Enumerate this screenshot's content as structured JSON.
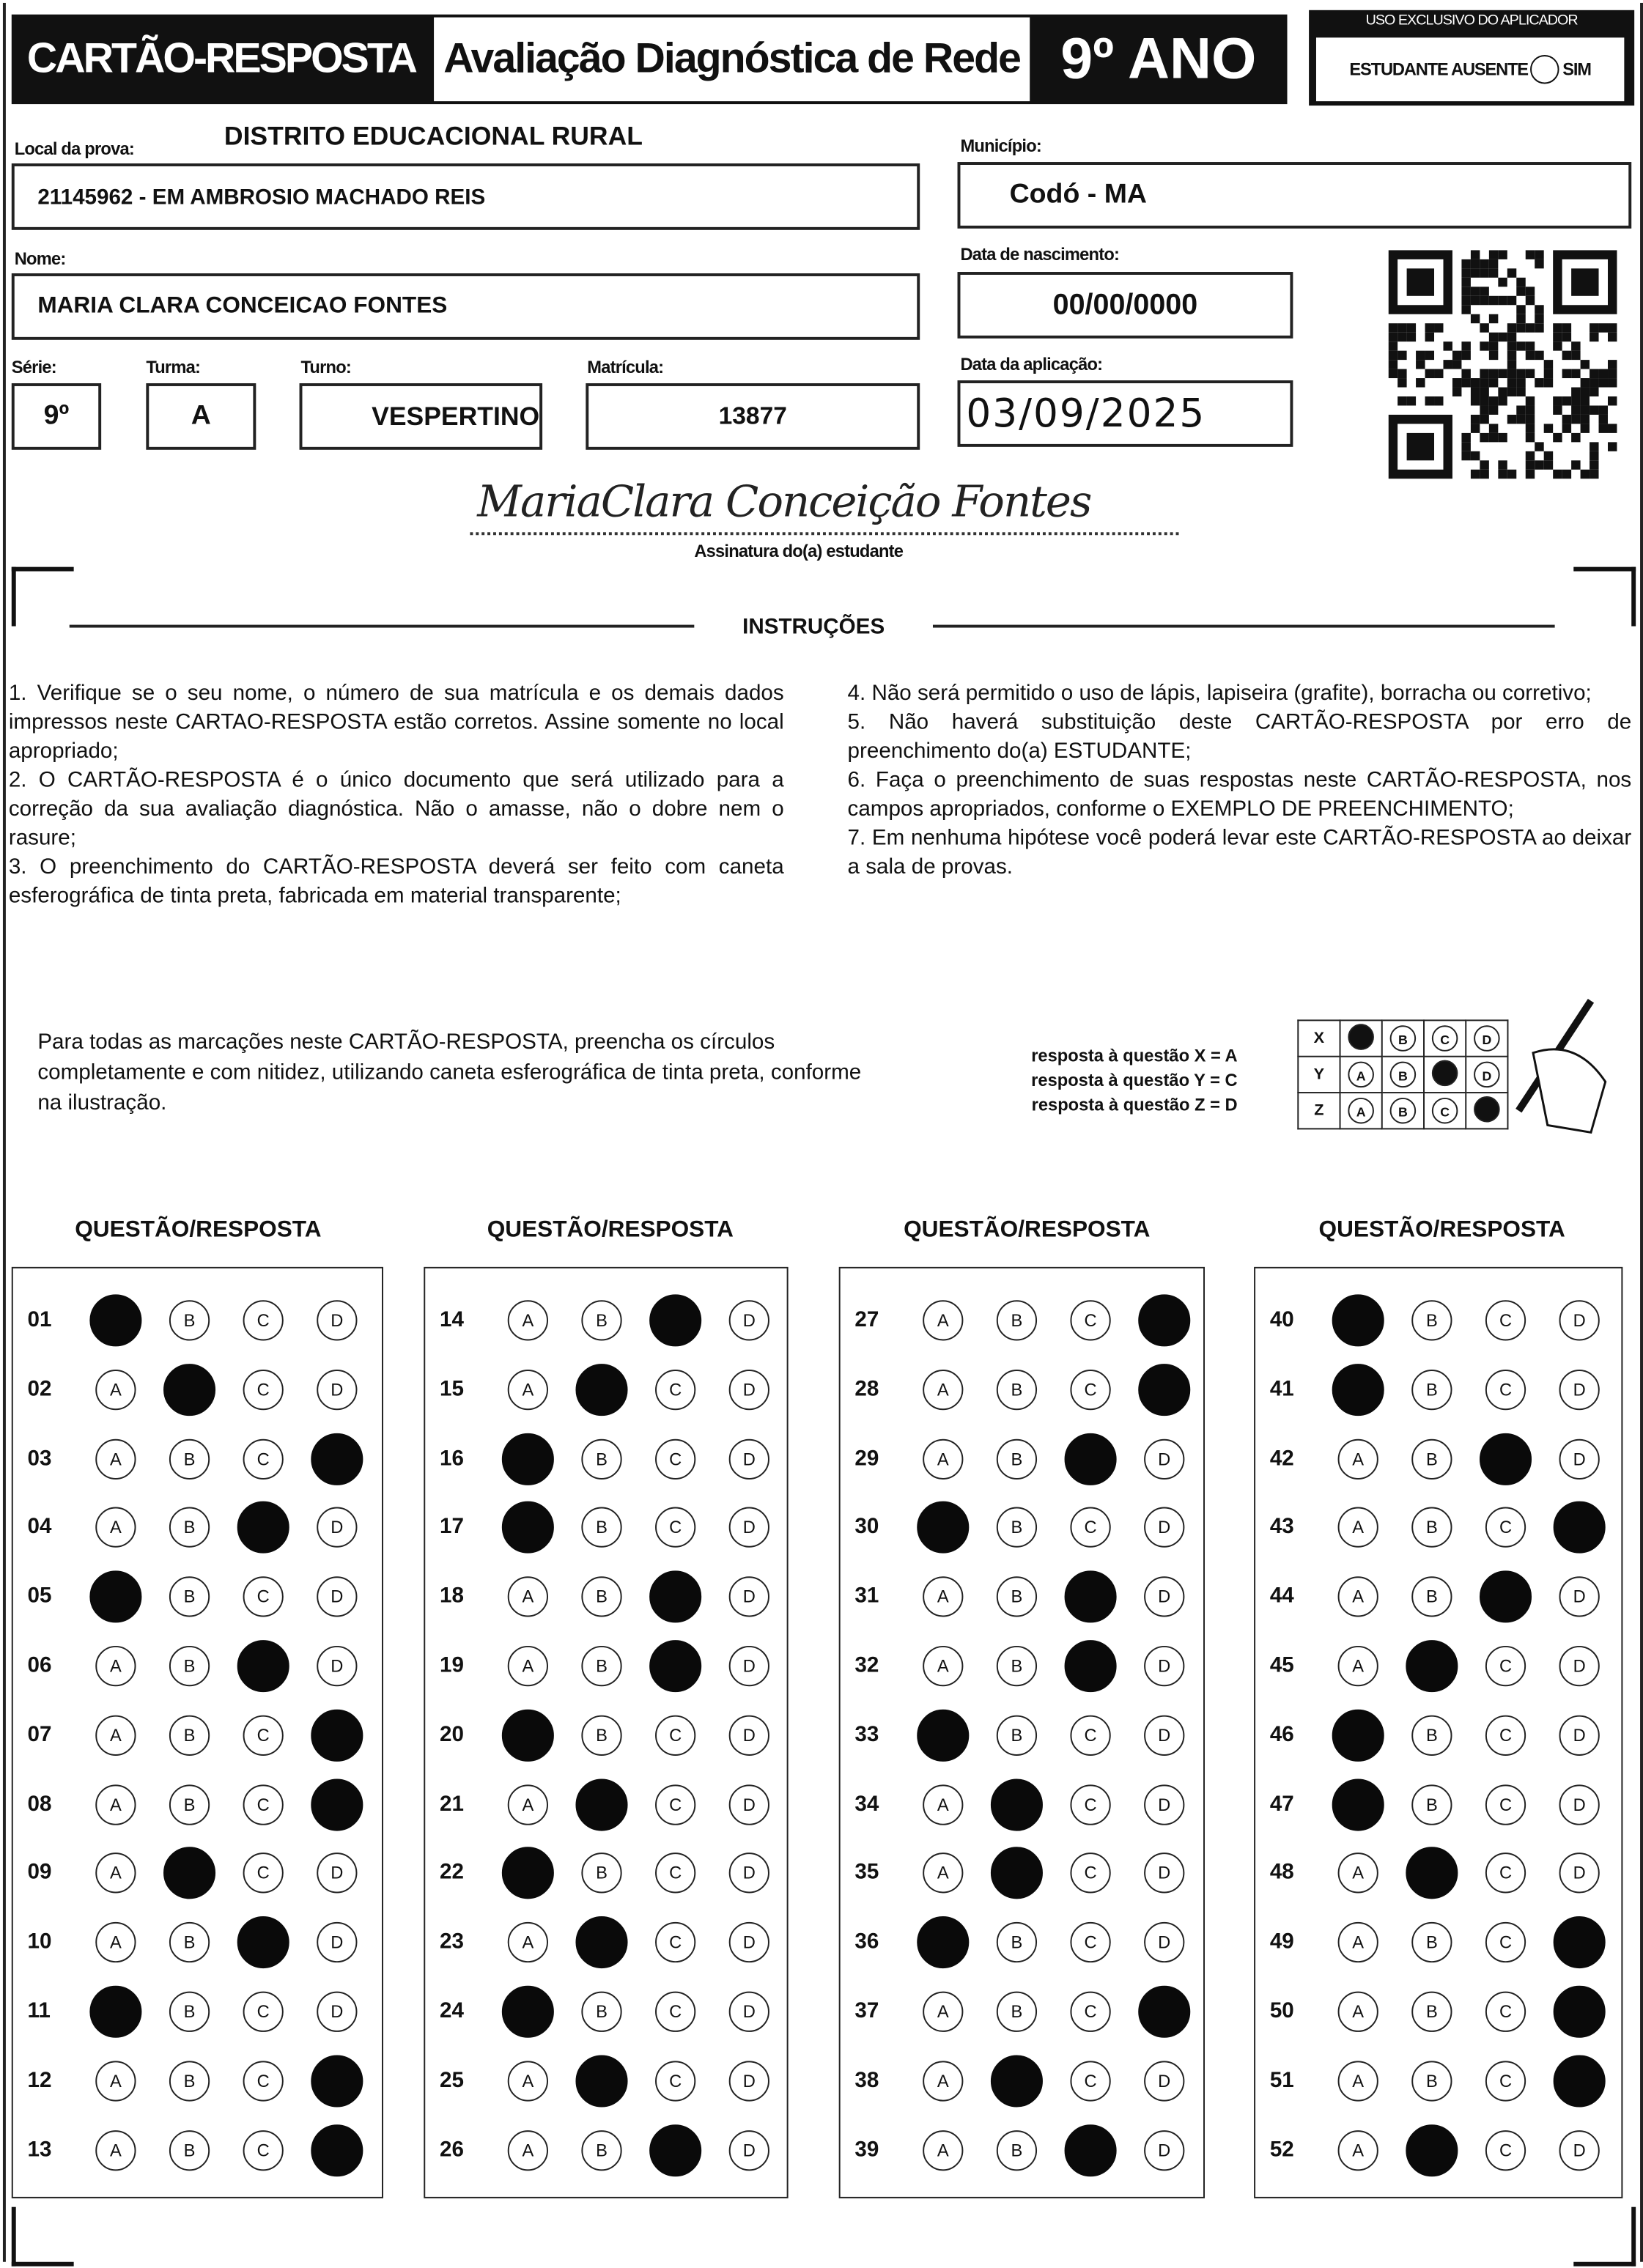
{
  "header": {
    "card_title": "CARTÃO-RESPOSTA",
    "exam_title": "Avaliação Diagnóstica de Rede",
    "grade_title": "9º ANO",
    "applicator_title": "USO EXCLUSIVO DO APLICADOR",
    "absent_label": "ESTUDANTE AUSENTE",
    "absent_option": "SIM"
  },
  "student": {
    "district": "DISTRITO EDUCACIONAL RURAL",
    "local_label": "Local da prova:",
    "local_value": "21145962 - EM AMBROSIO MACHADO REIS",
    "municipio_label": "Município:",
    "municipio_value": "Codó - MA",
    "nome_label": "Nome:",
    "nome_value": "MARIA CLARA CONCEICAO FONTES",
    "nascimento_label": "Data de nascimento:",
    "nascimento_value": "00/00/0000",
    "serie_label": "Série:",
    "serie_value": "9º",
    "turma_label": "Turma:",
    "turma_value": "A",
    "turno_label": "Turno:",
    "turno_value": "VESPERTINO",
    "matricula_label": "Matrícula:",
    "matricula_value": "13877",
    "aplicacao_label": "Data da aplicação:",
    "aplicacao_value": "03/09/2025",
    "signature": "MariaClara Conceição Fontes",
    "signature_label": "Assinatura do(a) estudante"
  },
  "instructions": {
    "title": "INSTRUÇÕES",
    "left": [
      "1. Verifique se o seu nome, o número de sua matrícula e os demais dados impressos neste CARTAO-RESPOSTA estão corretos. Assine somente no local apropriado;",
      "2. O CARTÃO-RESPOSTA é o único documento que será utilizado para a correção da sua avaliação diagnóstica. Não o amasse, não o dobre nem o rasure;",
      "3. O preenchimento do CARTÃO-RESPOSTA deverá ser feito com caneta esferográfica de tinta preta, fabricada em material transparente;"
    ],
    "right": [
      "4. Não será permitido o uso de lápis, lapiseira (grafite), borracha ou corretivo;",
      "5. Não haverá substituição deste CARTÃO-RESPOSTA por erro de preenchimento do(a) ESTUDANTE;",
      "6. Faça o preenchimento de suas respostas neste CARTÃO-RESPOSTA, nos campos apropriados, conforme o EXEMPLO DE PREENCHIMENTO;",
      "7. Em nenhuma hipótese você poderá levar este CARTÃO-RESPOSTA ao deixar a sala de provas."
    ],
    "fill_note": "Para todas as marcações neste CARTÃO-RESPOSTA, preencha os círculos completamente e com nitidez, utilizando caneta esferográfica de tinta preta, conforme na ilustração.",
    "example_labels": [
      "resposta à questão X = A",
      "resposta à questão Y = C",
      "resposta à questão Z = D"
    ],
    "example_rows": [
      {
        "label": "X",
        "marked": "A"
      },
      {
        "label": "Y",
        "marked": "C"
      },
      {
        "label": "Z",
        "marked": "D"
      }
    ]
  },
  "answers": {
    "column_header": "QUESTÃO/RESPOSTA",
    "options": [
      "A",
      "B",
      "C",
      "D"
    ],
    "columns": [
      [
        [
          "01",
          "A"
        ],
        [
          "02",
          "B"
        ],
        [
          "03",
          "D"
        ],
        [
          "04",
          "C"
        ],
        [
          "05",
          "A"
        ],
        [
          "06",
          "C"
        ],
        [
          "07",
          "D"
        ],
        [
          "08",
          "D"
        ],
        [
          "09",
          "B"
        ],
        [
          "10",
          "C"
        ],
        [
          "11",
          "A"
        ],
        [
          "12",
          "D"
        ],
        [
          "13",
          "D"
        ]
      ],
      [
        [
          "14",
          "C"
        ],
        [
          "15",
          "B"
        ],
        [
          "16",
          "A"
        ],
        [
          "17",
          "A"
        ],
        [
          "18",
          "C"
        ],
        [
          "19",
          "C"
        ],
        [
          "20",
          "A"
        ],
        [
          "21",
          "B"
        ],
        [
          "22",
          "A"
        ],
        [
          "23",
          "B"
        ],
        [
          "24",
          "A"
        ],
        [
          "25",
          "B"
        ],
        [
          "26",
          "C"
        ]
      ],
      [
        [
          "27",
          "D"
        ],
        [
          "28",
          "D"
        ],
        [
          "29",
          "C"
        ],
        [
          "30",
          "A"
        ],
        [
          "31",
          "C"
        ],
        [
          "32",
          "C"
        ],
        [
          "33",
          "A"
        ],
        [
          "34",
          "B"
        ],
        [
          "35",
          "B"
        ],
        [
          "36",
          "A"
        ],
        [
          "37",
          "D"
        ],
        [
          "38",
          "B"
        ],
        [
          "39",
          "C"
        ]
      ],
      [
        [
          "40",
          "A"
        ],
        [
          "41",
          "A"
        ],
        [
          "42",
          "C"
        ],
        [
          "43",
          "D"
        ],
        [
          "44",
          "C"
        ],
        [
          "45",
          "B"
        ],
        [
          "46",
          "A"
        ],
        [
          "47",
          "A"
        ],
        [
          "48",
          "B"
        ],
        [
          "49",
          "D"
        ],
        [
          "50",
          "D"
        ],
        [
          "51",
          "D"
        ],
        [
          "52",
          "B"
        ]
      ]
    ]
  }
}
